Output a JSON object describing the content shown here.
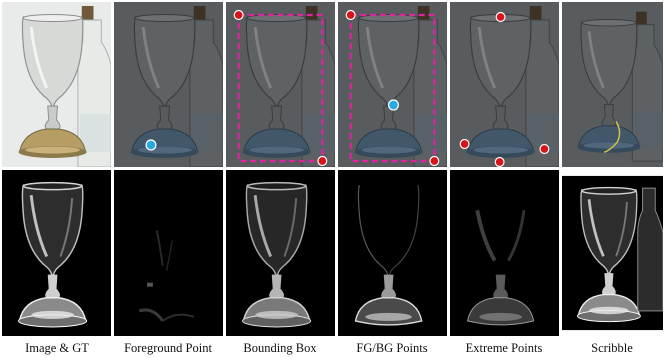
{
  "columns": [
    {
      "id": "image-gt",
      "caption": "Image & GT"
    },
    {
      "id": "foreground-point",
      "caption": "Foreground Point"
    },
    {
      "id": "bounding-box",
      "caption": "Bounding Box"
    },
    {
      "id": "fg-bg-points",
      "caption": "FG/BG Points"
    },
    {
      "id": "extreme-points",
      "caption": "Extreme Points"
    },
    {
      "id": "scribble",
      "caption": "Scribble"
    }
  ],
  "colors": {
    "positive_point": "#d8141b",
    "negative_point": "#2aa8e0",
    "box": "#e0239e",
    "scribble": "#c9c24a",
    "mask_background": "#000000"
  }
}
